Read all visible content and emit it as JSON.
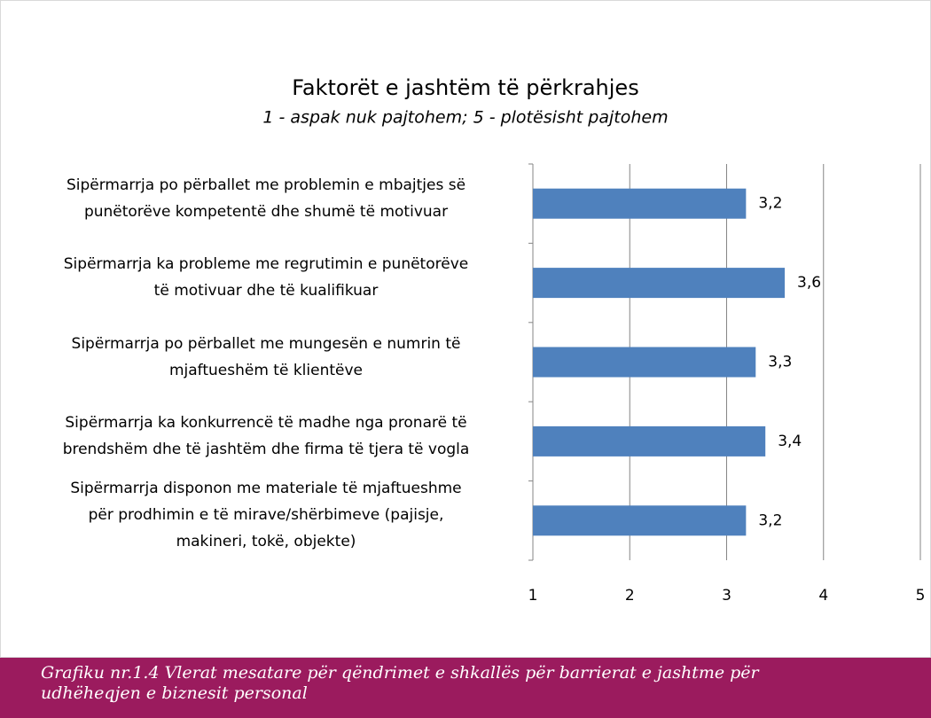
{
  "chart_data": {
    "type": "hbar",
    "title": "Faktorët e jashtëm të përkrahjes",
    "subtitle": "1 - aspak nuk pajtohem; 5 - plotësisht pajtohem",
    "categories": [
      "Sipërmarrja po përballet me problemin e mbajtjes së\npunëtorëve kompetentë dhe shumë të motivuar",
      "Sipërmarrja ka probleme me regrutimin e punëtorëve\ntë motivuar dhe të kualifikuar",
      "Sipërmarrja po përballet me mungesën e numrin të\nmjaftueshëm të klientëve",
      "Sipërmarrja ka konkurrencë të madhe nga pronarë të\nbrendshëm dhe të jashtëm dhe firma të tjera të vogla",
      "Sipërmarrja disponon me materiale të mjaftueshme\npër prodhimin e të mirave/shërbimeve (pajisje,\nmakineri, tokë, objekte)"
    ],
    "values": [
      3.2,
      3.6,
      3.3,
      3.4,
      3.2
    ],
    "value_labels": [
      "3,2",
      "3,6",
      "3,3",
      "3,4",
      "3,2"
    ],
    "color": "#4f81bd",
    "xlim": [
      1,
      5
    ],
    "xticks": [
      1,
      2,
      3,
      4,
      5
    ],
    "grid": true
  },
  "caption": "Grafiku nr.1.4 Vlerat mesatare për qëndrimet e shkallës për barrierat e jashtme për\nudhëheqjen e biznesit personal"
}
